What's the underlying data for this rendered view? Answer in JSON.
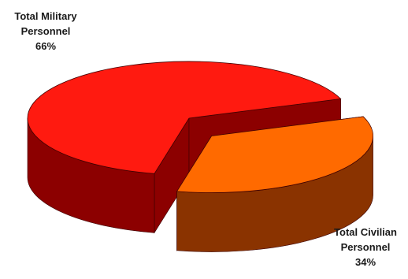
{
  "chart_data": {
    "type": "pie",
    "style": "3d-exploded",
    "title": "",
    "slices": [
      {
        "label_line1": "Total Military",
        "label_line2": "Personnel",
        "pct_text": "66%",
        "value": 66,
        "top_color": "#ff1a10",
        "side_color": "#8c0000"
      },
      {
        "label_line1": "Total Civilian",
        "label_line2": "Personnel",
        "pct_text": "34%",
        "value": 34,
        "top_color": "#ff6a00",
        "side_color": "#8a3300"
      }
    ],
    "legend": "none"
  }
}
